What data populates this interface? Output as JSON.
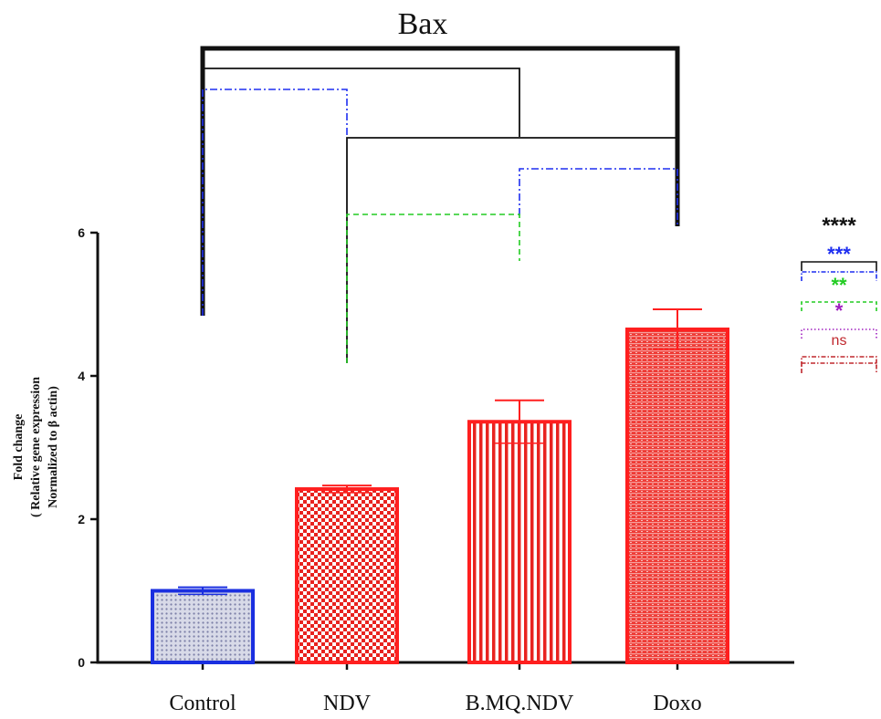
{
  "chart_data": {
    "type": "bar",
    "title": "Bax",
    "ylabel_lines": [
      "Fold change",
      "( Relative gene expression",
      "Normalized to β  actin)"
    ],
    "xlabel": "",
    "ylim": [
      0,
      6
    ],
    "yticks": [
      0,
      2,
      4,
      6
    ],
    "categories": [
      "Control",
      "NDV",
      "B.MQ.NDV",
      "Doxo"
    ],
    "values": [
      1.0,
      2.42,
      3.36,
      4.65
    ],
    "errors": [
      0.05,
      0.05,
      0.3,
      0.28
    ],
    "bar_colors": [
      "#1a2fe0",
      "#ff1f1f",
      "#ff1f1f",
      "#ff1f1f"
    ],
    "bar_patterns": [
      "dots",
      "checker",
      "vertical-lines",
      "horizontal-lines"
    ],
    "significance_legend": [
      {
        "label": "****",
        "color": "#111111",
        "line": "solid"
      },
      {
        "label": "***",
        "color": "#1e2ff0",
        "line": "dash-dot"
      },
      {
        "label": "**",
        "color": "#22cc22",
        "line": "dashed"
      },
      {
        "label": "*",
        "color": "#a020c0",
        "line": "dotted"
      },
      {
        "label": "ns",
        "color": "#c0282e",
        "line": "dash-dot"
      }
    ],
    "comparisons": [
      {
        "from": "Control",
        "to": "Doxo",
        "sig": "****"
      },
      {
        "from": "Control",
        "to": "B.MQ.NDV",
        "sig": "****"
      },
      {
        "from": "Control",
        "to": "NDV",
        "sig": "***"
      },
      {
        "from": "NDV",
        "to": "Doxo",
        "sig": "****"
      },
      {
        "from": "B.MQ.NDV",
        "to": "Doxo",
        "sig": "***"
      },
      {
        "from": "NDV",
        "to": "B.MQ.NDV",
        "sig": "**"
      }
    ],
    "grid": false
  }
}
